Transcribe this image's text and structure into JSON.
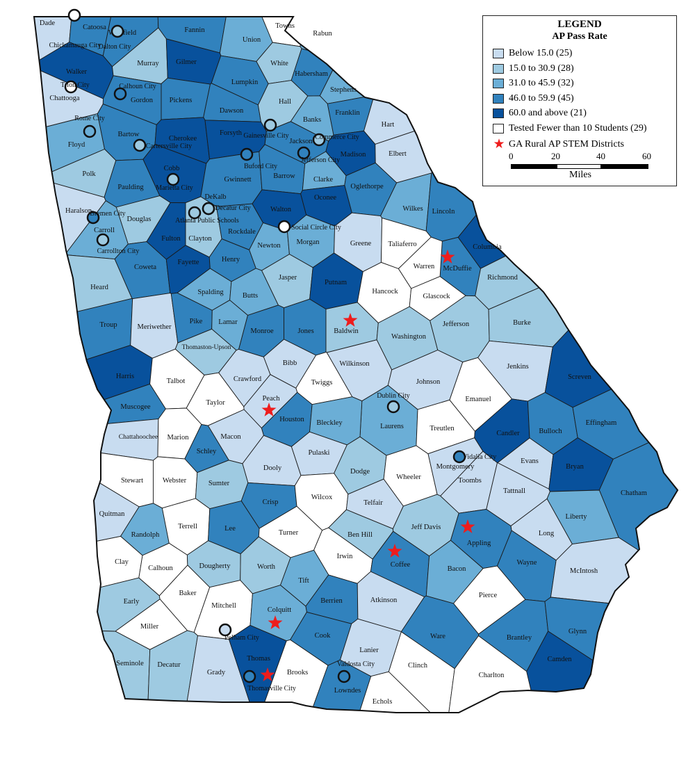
{
  "legend": {
    "title": "LEGEND",
    "subtitle": "AP Pass Rate",
    "classes": [
      {
        "label": "Below 15.0 (25)",
        "color": "#c8dcf0"
      },
      {
        "label": "15.0 to 30.9 (28)",
        "color": "#9ecae1"
      },
      {
        "label": "31.0 to 45.9 (32)",
        "color": "#6baed6"
      },
      {
        "label": "46.0 to 59.9 (45)",
        "color": "#3182bd"
      },
      {
        "label": "60.0 and above (21)",
        "color": "#08519c"
      },
      {
        "label": "Tested Fewer than 10 Students (29)",
        "color": "#ffffff"
      }
    ],
    "star_label": "GA Rural AP STEM Districts",
    "star_color": "#ee1c1c",
    "scale": {
      "ticks": [
        "0",
        "20",
        "40",
        "60"
      ],
      "units": "Miles"
    }
  },
  "counties": [
    {
      "name": "Dade",
      "cls": 0
    },
    {
      "name": "Catoosa",
      "cls": 3
    },
    {
      "name": "Whitfield",
      "cls": 3
    },
    {
      "name": "Fannin",
      "cls": 3
    },
    {
      "name": "Union",
      "cls": 2
    },
    {
      "name": "Towns",
      "cls": 5
    },
    {
      "name": "Rabun",
      "cls": 2
    },
    {
      "name": "Walker",
      "cls": 4
    },
    {
      "name": "Murray",
      "cls": 1
    },
    {
      "name": "Gilmer",
      "cls": 4
    },
    {
      "name": "White",
      "cls": 1
    },
    {
      "name": "Lumpkin",
      "cls": 3
    },
    {
      "name": "Habersham",
      "cls": 3
    },
    {
      "name": "Stephens",
      "cls": 2
    },
    {
      "name": "Chattooga",
      "cls": 0
    },
    {
      "name": "Gordon",
      "cls": 3
    },
    {
      "name": "Pickens",
      "cls": 3
    },
    {
      "name": "Dawson",
      "cls": 3
    },
    {
      "name": "Hall",
      "cls": 1
    },
    {
      "name": "Banks",
      "cls": 2
    },
    {
      "name": "Franklin",
      "cls": 3
    },
    {
      "name": "Hart",
      "cls": 0
    },
    {
      "name": "Floyd",
      "cls": 2
    },
    {
      "name": "Bartow",
      "cls": 3
    },
    {
      "name": "Cherokee",
      "cls": 4
    },
    {
      "name": "Forsyth",
      "cls": 4
    },
    {
      "name": "Jackson",
      "cls": 3
    },
    {
      "name": "Madison",
      "cls": 4
    },
    {
      "name": "Elbert",
      "cls": 0
    },
    {
      "name": "Polk",
      "cls": 1
    },
    {
      "name": "Paulding",
      "cls": 3
    },
    {
      "name": "Cobb",
      "cls": 4
    },
    {
      "name": "Gwinnett",
      "cls": 3
    },
    {
      "name": "Barrow",
      "cls": 3
    },
    {
      "name": "Clarke",
      "cls": 2
    },
    {
      "name": "Oglethorpe",
      "cls": 3
    },
    {
      "name": "Haralson",
      "cls": 0
    },
    {
      "name": "Douglas",
      "cls": 1
    },
    {
      "name": "Walton",
      "cls": 4
    },
    {
      "name": "Oconee",
      "cls": 4
    },
    {
      "name": "Wilkes",
      "cls": 2
    },
    {
      "name": "Lincoln",
      "cls": 3
    },
    {
      "name": "Carroll",
      "cls": 2
    },
    {
      "name": "Fulton",
      "cls": 4
    },
    {
      "name": "Clayton",
      "cls": 1
    },
    {
      "name": "Rockdale",
      "cls": 3
    },
    {
      "name": "Newton",
      "cls": 2
    },
    {
      "name": "Morgan",
      "cls": 2
    },
    {
      "name": "Greene",
      "cls": 0
    },
    {
      "name": "Taliaferro",
      "cls": 5
    },
    {
      "name": "McDuffie",
      "cls": 3
    },
    {
      "name": "Columbia",
      "cls": 4
    },
    {
      "name": "Heard",
      "cls": 1
    },
    {
      "name": "Coweta",
      "cls": 3
    },
    {
      "name": "Fayette",
      "cls": 4
    },
    {
      "name": "Henry",
      "cls": 3
    },
    {
      "name": "Jasper",
      "cls": 1
    },
    {
      "name": "Putnam",
      "cls": 4
    },
    {
      "name": "Warren",
      "cls": 5
    },
    {
      "name": "Richmond",
      "cls": 1
    },
    {
      "name": "Spalding",
      "cls": 2
    },
    {
      "name": "Butts",
      "cls": 2
    },
    {
      "name": "Hancock",
      "cls": 5
    },
    {
      "name": "Glascock",
      "cls": 5
    },
    {
      "name": "Troup",
      "cls": 3
    },
    {
      "name": "Meriwether",
      "cls": 0
    },
    {
      "name": "Pike",
      "cls": 3
    },
    {
      "name": "Lamar",
      "cls": 2
    },
    {
      "name": "Monroe",
      "cls": 3
    },
    {
      "name": "Jones",
      "cls": 3
    },
    {
      "name": "Baldwin",
      "cls": 1
    },
    {
      "name": "Washington",
      "cls": 1
    },
    {
      "name": "Jefferson",
      "cls": 1
    },
    {
      "name": "Burke",
      "cls": 1
    },
    {
      "name": "Thomaston-Upson",
      "cls": 1
    },
    {
      "name": "Bibb",
      "cls": 0
    },
    {
      "name": "Wilkinson",
      "cls": 0
    },
    {
      "name": "Harris",
      "cls": 4
    },
    {
      "name": "Talbot",
      "cls": 5
    },
    {
      "name": "Crawford",
      "cls": 0
    },
    {
      "name": "Twiggs",
      "cls": 5
    },
    {
      "name": "Johnson",
      "cls": 0
    },
    {
      "name": "Jenkins",
      "cls": 0
    },
    {
      "name": "Screven",
      "cls": 4
    },
    {
      "name": "Muscogee",
      "cls": 3
    },
    {
      "name": "Taylor",
      "cls": 5
    },
    {
      "name": "Peach",
      "cls": 0
    },
    {
      "name": "Houston",
      "cls": 3
    },
    {
      "name": "Laurens",
      "cls": 2
    },
    {
      "name": "Emanuel",
      "cls": 5
    },
    {
      "name": "Chattahoochee",
      "cls": 0
    },
    {
      "name": "Marion",
      "cls": 5
    },
    {
      "name": "Macon",
      "cls": 0
    },
    {
      "name": "Bleckley",
      "cls": 2
    },
    {
      "name": "Treutlen",
      "cls": 5
    },
    {
      "name": "Candler",
      "cls": 4
    },
    {
      "name": "Bulloch",
      "cls": 3
    },
    {
      "name": "Effingham",
      "cls": 3
    },
    {
      "name": "Schley",
      "cls": 3
    },
    {
      "name": "Dooly",
      "cls": 0
    },
    {
      "name": "Pulaski",
      "cls": 0
    },
    {
      "name": "Dodge",
      "cls": 1
    },
    {
      "name": "Montgomery",
      "cls": 0
    },
    {
      "name": "Evans",
      "cls": 0
    },
    {
      "name": "Stewart",
      "cls": 5
    },
    {
      "name": "Webster",
      "cls": 5
    },
    {
      "name": "Sumter",
      "cls": 1
    },
    {
      "name": "Wheeler",
      "cls": 5
    },
    {
      "name": "Toombs",
      "cls": 0
    },
    {
      "name": "Tattnall",
      "cls": 0
    },
    {
      "name": "Bryan",
      "cls": 4
    },
    {
      "name": "Chatham",
      "cls": 3
    },
    {
      "name": "Quitman",
      "cls": 0
    },
    {
      "name": "Crisp",
      "cls": 3
    },
    {
      "name": "Wilcox",
      "cls": 5
    },
    {
      "name": "Telfair",
      "cls": 0
    },
    {
      "name": "Jeff Davis",
      "cls": 1
    },
    {
      "name": "Randolph",
      "cls": 2
    },
    {
      "name": "Terrell",
      "cls": 5
    },
    {
      "name": "Lee",
      "cls": 3
    },
    {
      "name": "Turner",
      "cls": 5
    },
    {
      "name": "Ben Hill",
      "cls": 1
    },
    {
      "name": "Appling",
      "cls": 3
    },
    {
      "name": "Liberty",
      "cls": 2
    },
    {
      "name": "Long",
      "cls": 0
    },
    {
      "name": "Clay",
      "cls": 5
    },
    {
      "name": "Calhoun",
      "cls": 5
    },
    {
      "name": "Dougherty",
      "cls": 1
    },
    {
      "name": "Worth",
      "cls": 1
    },
    {
      "name": "Irwin",
      "cls": 5
    },
    {
      "name": "Coffee",
      "cls": 3
    },
    {
      "name": "Wayne",
      "cls": 3
    },
    {
      "name": "McIntosh",
      "cls": 0
    },
    {
      "name": "Tift",
      "cls": 2
    },
    {
      "name": "Bacon",
      "cls": 2
    },
    {
      "name": "Early",
      "cls": 1
    },
    {
      "name": "Baker",
      "cls": 5
    },
    {
      "name": "Berrien",
      "cls": 3
    },
    {
      "name": "Atkinson",
      "cls": 0
    },
    {
      "name": "Pierce",
      "cls": 5
    },
    {
      "name": "Miller",
      "cls": 5
    },
    {
      "name": "Mitchell",
      "cls": 5
    },
    {
      "name": "Colquitt",
      "cls": 2
    },
    {
      "name": "Cook",
      "cls": 3
    },
    {
      "name": "Brantley",
      "cls": 3
    },
    {
      "name": "Glynn",
      "cls": 3
    },
    {
      "name": "Ware",
      "cls": 3
    },
    {
      "name": "Seminole",
      "cls": 1
    },
    {
      "name": "Decatur",
      "cls": 1
    },
    {
      "name": "Grady",
      "cls": 0
    },
    {
      "name": "Thomas",
      "cls": 4
    },
    {
      "name": "Brooks",
      "cls": 5
    },
    {
      "name": "Lowndes",
      "cls": 3
    },
    {
      "name": "Lanier",
      "cls": 0
    },
    {
      "name": "Clinch",
      "cls": 5
    },
    {
      "name": "Echols",
      "cls": 5
    },
    {
      "name": "Charlton",
      "cls": 5
    },
    {
      "name": "Camden",
      "cls": 4
    }
  ],
  "city_districts": [
    {
      "name": "Chickamauga City",
      "color": "#ffffff"
    },
    {
      "name": "Dalton City",
      "color": "#9ecae1"
    },
    {
      "name": "Trion City",
      "color": "#ffffff"
    },
    {
      "name": "Calhoun City",
      "color": "#3182bd"
    },
    {
      "name": "Rome City",
      "color": "#6baed6"
    },
    {
      "name": "Cartersville City",
      "color": "#9ecae1"
    },
    {
      "name": "Gainesville City",
      "color": "#9ecae1"
    },
    {
      "name": "Commerce City",
      "color": "#9ecae1"
    },
    {
      "name": "Buford City",
      "color": "#3182bd"
    },
    {
      "name": "Jefferson City",
      "color": "#3182bd"
    },
    {
      "name": "Marietta City",
      "color": "#9ecae1"
    },
    {
      "name": "DeKalb",
      "color": "#9ecae1"
    },
    {
      "name": "Decatur City",
      "color": "#9ecae1"
    },
    {
      "name": "Atlanta Public Schools",
      "color": "#9ecae1"
    },
    {
      "name": "Bremen City",
      "color": "#3182bd"
    },
    {
      "name": "Social Circle City",
      "color": "#ffffff"
    },
    {
      "name": "Carrollton City",
      "color": "#9ecae1"
    },
    {
      "name": "Dublin City",
      "color": "#9ecae1"
    },
    {
      "name": "Vidalia City",
      "color": "#3182bd"
    },
    {
      "name": "Pelham City",
      "color": "#c8dcf0"
    },
    {
      "name": "Thomasville City",
      "color": "#3182bd"
    },
    {
      "name": "Valdosta City",
      "color": "#3182bd"
    }
  ],
  "stem_districts": [
    "McDuffie",
    "Baldwin",
    "Peach",
    "Appling",
    "Coffee",
    "Colquitt",
    "Thomas"
  ]
}
